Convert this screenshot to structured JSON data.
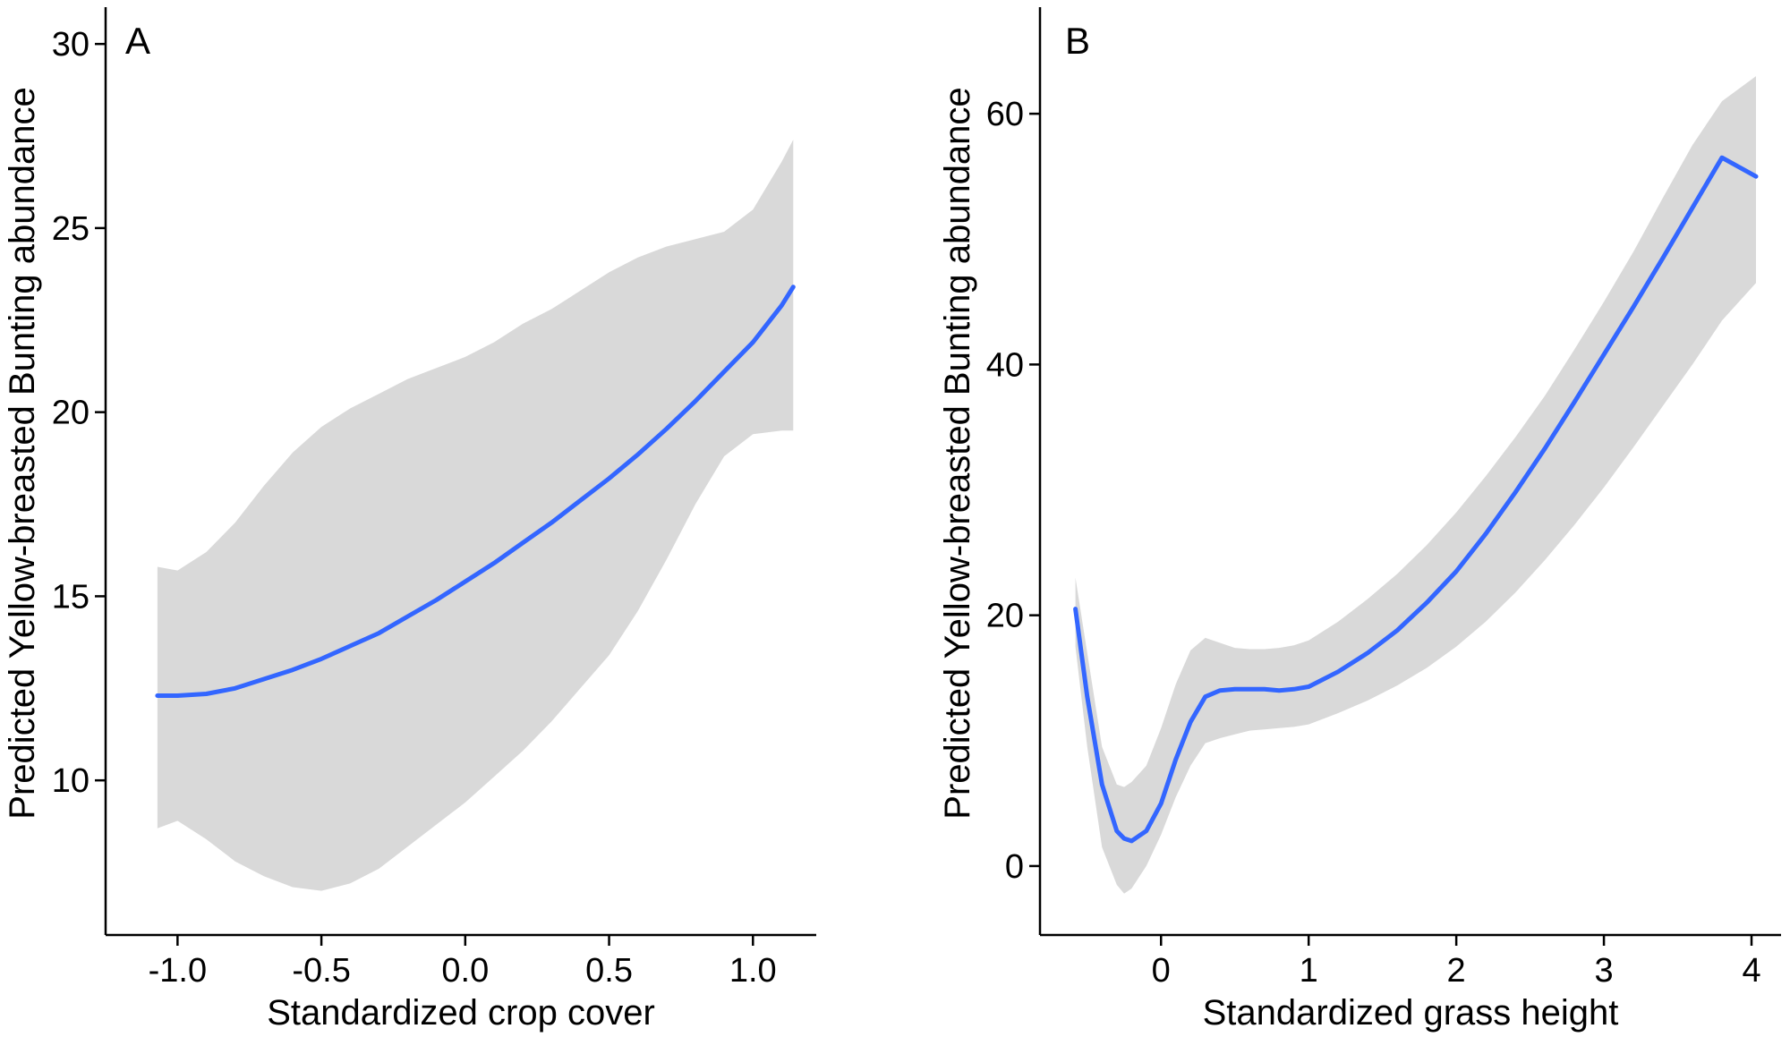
{
  "colors": {
    "line": "#3366ff",
    "ribbon": "#d9d9d9",
    "axis": "#000000",
    "background": "#ffffff"
  },
  "chart_data": [
    {
      "panel": "A",
      "type": "line",
      "xlabel": "Standardized crop cover",
      "ylabel": "Predicted Yellow-breasted Bunting abundance",
      "xlim": [
        -1.25,
        1.22
      ],
      "ylim": [
        5.8,
        31.0
      ],
      "xticks": [
        -1.0,
        -0.5,
        0.0,
        0.5,
        1.0
      ],
      "xtick_labels": [
        "-1.0",
        "-0.5",
        "0.0",
        "0.5",
        "1.0"
      ],
      "yticks": [
        10,
        15,
        20,
        25,
        30
      ],
      "ytick_labels": [
        "10",
        "15",
        "20",
        "25",
        "30"
      ],
      "grid": false,
      "legend": "none",
      "series": [
        {
          "x": [
            -1.07,
            -1.0,
            -0.9,
            -0.8,
            -0.7,
            -0.6,
            -0.5,
            -0.4,
            -0.3,
            -0.2,
            -0.1,
            0.0,
            0.1,
            0.2,
            0.3,
            0.4,
            0.5,
            0.6,
            0.7,
            0.8,
            0.9,
            1.0,
            1.1,
            1.14
          ],
          "y": [
            12.3,
            12.3,
            12.35,
            12.5,
            12.75,
            13.0,
            13.3,
            13.65,
            14.0,
            14.45,
            14.9,
            15.4,
            15.9,
            16.45,
            17.0,
            17.6,
            18.2,
            18.85,
            19.55,
            20.3,
            21.1,
            21.9,
            22.9,
            23.4
          ],
          "ci_lower": [
            8.7,
            8.9,
            8.4,
            7.8,
            7.4,
            7.1,
            7.0,
            7.2,
            7.6,
            8.2,
            8.8,
            9.4,
            10.1,
            10.8,
            11.6,
            12.5,
            13.4,
            14.6,
            16.0,
            17.5,
            18.8,
            19.4,
            19.5,
            19.5
          ],
          "ci_upper": [
            15.8,
            15.7,
            16.2,
            17.0,
            18.0,
            18.9,
            19.6,
            20.1,
            20.5,
            20.9,
            21.2,
            21.5,
            21.9,
            22.4,
            22.8,
            23.3,
            23.8,
            24.2,
            24.5,
            24.7,
            24.9,
            25.5,
            26.8,
            27.4
          ]
        }
      ]
    },
    {
      "panel": "B",
      "type": "line",
      "xlabel": "Standardized grass height",
      "ylabel": "Predicted Yellow-breasted Bunting abundance",
      "xlim": [
        -0.82,
        4.2
      ],
      "ylim": [
        -5.5,
        68.5
      ],
      "xticks": [
        0,
        1,
        2,
        3,
        4
      ],
      "xtick_labels": [
        "0",
        "1",
        "2",
        "3",
        "4"
      ],
      "yticks": [
        0,
        20,
        40,
        60
      ],
      "ytick_labels": [
        "0",
        "20",
        "40",
        "60"
      ],
      "grid": false,
      "legend": "none",
      "series": [
        {
          "x": [
            -0.58,
            -0.5,
            -0.4,
            -0.3,
            -0.25,
            -0.2,
            -0.1,
            0.0,
            0.1,
            0.2,
            0.3,
            0.4,
            0.5,
            0.6,
            0.7,
            0.8,
            0.9,
            1.0,
            1.2,
            1.4,
            1.6,
            1.8,
            2.0,
            2.2,
            2.4,
            2.6,
            2.8,
            3.0,
            3.2,
            3.4,
            3.6,
            3.8,
            4.03
          ],
          "y": [
            20.5,
            13.5,
            6.5,
            2.8,
            2.2,
            2.0,
            2.8,
            5.0,
            8.5,
            11.5,
            13.5,
            14.0,
            14.1,
            14.1,
            14.1,
            14.0,
            14.1,
            14.3,
            15.5,
            17.0,
            18.8,
            21.0,
            23.5,
            26.5,
            29.8,
            33.3,
            37.0,
            40.8,
            44.6,
            48.5,
            52.5,
            56.5,
            55.0
          ],
          "ci_lower": [
            17.5,
            9.5,
            1.5,
            -1.5,
            -2.2,
            -1.8,
            0.0,
            2.5,
            5.5,
            8.0,
            9.8,
            10.2,
            10.5,
            10.8,
            10.9,
            11.0,
            11.1,
            11.3,
            12.2,
            13.2,
            14.4,
            15.8,
            17.5,
            19.5,
            21.8,
            24.4,
            27.2,
            30.2,
            33.4,
            36.7,
            40.0,
            43.5,
            46.5
          ],
          "ci_upper": [
            23.0,
            17.0,
            9.5,
            6.5,
            6.3,
            6.7,
            8.0,
            11.0,
            14.5,
            17.2,
            18.2,
            17.8,
            17.4,
            17.3,
            17.3,
            17.4,
            17.6,
            18.0,
            19.5,
            21.3,
            23.3,
            25.6,
            28.2,
            31.1,
            34.2,
            37.5,
            41.2,
            45.0,
            49.0,
            53.3,
            57.5,
            61.0,
            63.0
          ]
        }
      ]
    }
  ]
}
